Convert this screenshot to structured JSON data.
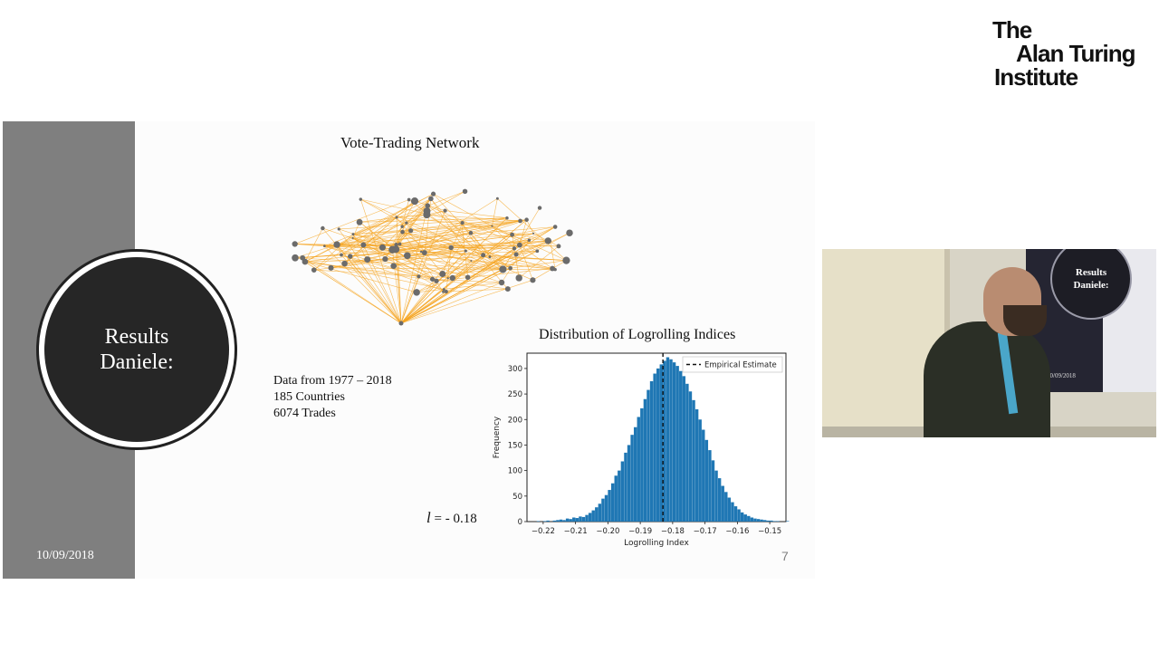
{
  "logo": {
    "line1": "The",
    "line2": "Alan Turing",
    "line3": "Institute"
  },
  "slide": {
    "section_title_line1": "Results",
    "section_title_line2": "Daniele:",
    "date": "10/09/2018",
    "page_number": "7",
    "network_title": "Vote-Trading Network",
    "stats": [
      "Data from 1977 – 2018",
      "185 Countries",
      "6074 Trades"
    ],
    "l_symbol": "l",
    "l_value": "= - 0.18"
  },
  "colors": {
    "edge": "#f5a623",
    "node": "#6b6b6b",
    "bar": "#1f77b4",
    "band": "#7f7f7f",
    "circle": "#262626"
  },
  "video": {
    "screen_title_line1": "Results",
    "screen_title_line2": "Daniele:",
    "screen_date": "10/09/2018"
  },
  "chart_data": {
    "type": "bar",
    "title": "Distribution of Logrolling Indices",
    "xlabel": "Logrolling Index",
    "ylabel": "Frequency",
    "xlim": [
      -0.225,
      -0.145
    ],
    "ylim": [
      0,
      330
    ],
    "xticks": [
      -0.22,
      -0.21,
      -0.2,
      -0.19,
      -0.18,
      -0.17,
      -0.16,
      -0.15
    ],
    "xtick_labels": [
      "−0.22",
      "−0.21",
      "−0.20",
      "−0.19",
      "−0.18",
      "−0.17",
      "−0.16",
      "−0.15"
    ],
    "yticks": [
      0,
      50,
      100,
      150,
      200,
      250,
      300
    ],
    "bin_start": -0.222,
    "bin_width": 0.001,
    "values": [
      1,
      0,
      1,
      2,
      0,
      2,
      3,
      4,
      3,
      6,
      5,
      8,
      7,
      10,
      9,
      13,
      17,
      22,
      28,
      35,
      45,
      52,
      62,
      75,
      90,
      100,
      118,
      135,
      150,
      170,
      185,
      205,
      222,
      240,
      258,
      275,
      290,
      300,
      308,
      315,
      322,
      318,
      312,
      305,
      295,
      285,
      270,
      255,
      238,
      220,
      200,
      180,
      160,
      140,
      120,
      100,
      85,
      70,
      58,
      47,
      38,
      30,
      24,
      18,
      14,
      11,
      8,
      6,
      5,
      4,
      3,
      2,
      2,
      1,
      1,
      0,
      0,
      1
    ],
    "reference_line": {
      "x": -0.183,
      "label": "Empirical Estimate",
      "style": "dashed"
    },
    "legend_position": "top-right"
  }
}
